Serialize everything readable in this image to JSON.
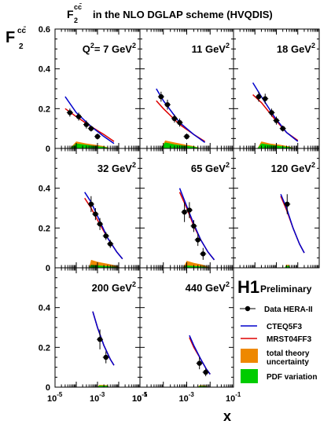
{
  "chart_data": {
    "type": "scatter",
    "title_prefix": "F",
    "title_sub": "2",
    "title_sup": "cc̄",
    "title_suffix": "in the NLO DGLAP scheme (HVQDIS)",
    "ylabel_main": "F",
    "ylabel_sub": "2",
    "ylabel_sup": "cc̄",
    "xlabel": "x",
    "x_scale": "log",
    "xlim": [
      1e-05,
      0.1
    ],
    "ylim": [
      0,
      0.6
    ],
    "y_ticks": [
      {
        "value": 0,
        "label": "0"
      },
      {
        "value": 0.2,
        "label": "0.2"
      },
      {
        "value": 0.4,
        "label": "0.4"
      },
      {
        "value": 0.6,
        "label": "0.6"
      }
    ],
    "x_ticks": [
      {
        "value": 1e-05,
        "base": "10",
        "exp": "-5"
      },
      {
        "value": 0.001,
        "base": "10",
        "exp": "-3"
      },
      {
        "value": 0.1,
        "base": "10",
        "exp": "-1"
      }
    ],
    "grid": false,
    "logo": {
      "h1": "H1",
      "status": "Preliminary"
    },
    "legend": {
      "placement": "bottom-right",
      "data": "Data HERA-II",
      "cteq": "CTEQ5F3",
      "mrst": "MRST04FF3",
      "theory": "total theory uncertainty",
      "pdf": "PDF variation"
    },
    "colors": {
      "data": "#000000",
      "cteq": "#0000cc",
      "mrst": "#dd0000",
      "theory_band": "#ee8800",
      "pdf_band": "#00cc00"
    },
    "panels": [
      {
        "q2_prefix": "Q",
        "q2_value": "7",
        "q2_unit": "GeV",
        "data": [
          {
            "x": 5e-05,
            "y": 0.18,
            "err": 0.02
          },
          {
            "x": 0.00013,
            "y": 0.16,
            "err": 0.02
          },
          {
            "x": 0.0003,
            "y": 0.12,
            "err": 0.02
          },
          {
            "x": 0.0005,
            "y": 0.1,
            "err": 0.015
          },
          {
            "x": 0.001,
            "y": 0.06,
            "err": 0.015
          }
        ],
        "cteq": [
          [
            3e-05,
            0.26
          ],
          [
            0.0001,
            0.18
          ],
          [
            0.0005,
            0.11
          ],
          [
            0.002,
            0.06
          ],
          [
            0.006,
            0.025
          ]
        ],
        "mrst": [
          [
            3e-05,
            0.2
          ],
          [
            0.0001,
            0.16
          ],
          [
            0.0005,
            0.11
          ],
          [
            0.002,
            0.07
          ],
          [
            0.006,
            0.035
          ]
        ],
        "theory_band": [
          [
            5e-05,
            0.0
          ],
          [
            0.0001,
            0.035
          ],
          [
            0.0003,
            0.025
          ],
          [
            0.0008,
            0.018
          ],
          [
            0.002,
            0.012
          ],
          [
            0.004,
            0.0
          ]
        ],
        "pdf_band": [
          [
            5e-05,
            0.0
          ],
          [
            0.0001,
            0.025
          ],
          [
            0.0003,
            0.018
          ],
          [
            0.0008,
            0.012
          ],
          [
            0.002,
            0.008
          ],
          [
            0.004,
            0.0
          ]
        ]
      },
      {
        "q2_prefix": "",
        "q2_value": "11",
        "q2_unit": "GeV",
        "data": [
          {
            "x": 8e-05,
            "y": 0.26,
            "err": 0.025
          },
          {
            "x": 0.00015,
            "y": 0.22,
            "err": 0.025
          },
          {
            "x": 0.0003,
            "y": 0.15,
            "err": 0.02
          },
          {
            "x": 0.0005,
            "y": 0.13,
            "err": 0.02
          },
          {
            "x": 0.001,
            "y": 0.06,
            "err": 0.015
          }
        ],
        "cteq": [
          [
            5e-05,
            0.3
          ],
          [
            0.0001,
            0.24
          ],
          [
            0.0005,
            0.13
          ],
          [
            0.002,
            0.07
          ],
          [
            0.006,
            0.03
          ]
        ],
        "mrst": [
          [
            5e-05,
            0.24
          ],
          [
            0.0001,
            0.2
          ],
          [
            0.0005,
            0.12
          ],
          [
            0.002,
            0.07
          ],
          [
            0.006,
            0.035
          ]
        ],
        "theory_band": [
          [
            8e-05,
            0.0
          ],
          [
            0.00012,
            0.04
          ],
          [
            0.0003,
            0.03
          ],
          [
            0.0008,
            0.02
          ],
          [
            0.002,
            0.012
          ],
          [
            0.004,
            0.0
          ]
        ],
        "pdf_band": [
          [
            8e-05,
            0.0
          ],
          [
            0.00012,
            0.03
          ],
          [
            0.0003,
            0.02
          ],
          [
            0.0008,
            0.014
          ],
          [
            0.002,
            0.009
          ],
          [
            0.004,
            0.0
          ]
        ]
      },
      {
        "q2_prefix": "",
        "q2_value": "18",
        "q2_unit": "GeV",
        "data": [
          {
            "x": 0.00015,
            "y": 0.26,
            "err": 0.025
          },
          {
            "x": 0.0003,
            "y": 0.25,
            "err": 0.025
          },
          {
            "x": 0.0006,
            "y": 0.18,
            "err": 0.02
          },
          {
            "x": 0.001,
            "y": 0.14,
            "err": 0.02
          },
          {
            "x": 0.002,
            "y": 0.1,
            "err": 0.015
          }
        ],
        "cteq": [
          [
            8e-05,
            0.33
          ],
          [
            0.0002,
            0.26
          ],
          [
            0.0008,
            0.16
          ],
          [
            0.003,
            0.08
          ],
          [
            0.01,
            0.035
          ]
        ],
        "mrst": [
          [
            8e-05,
            0.27
          ],
          [
            0.0002,
            0.23
          ],
          [
            0.0008,
            0.15
          ],
          [
            0.003,
            0.08
          ],
          [
            0.01,
            0.04
          ]
        ],
        "theory_band": [
          [
            0.00013,
            0.0
          ],
          [
            0.0002,
            0.035
          ],
          [
            0.0005,
            0.025
          ],
          [
            0.0015,
            0.018
          ],
          [
            0.004,
            0.01
          ],
          [
            0.007,
            0.0
          ]
        ],
        "pdf_band": [
          [
            0.00013,
            0.0
          ],
          [
            0.0002,
            0.025
          ],
          [
            0.0005,
            0.018
          ],
          [
            0.0015,
            0.012
          ],
          [
            0.004,
            0.007
          ],
          [
            0.007,
            0.0
          ]
        ]
      },
      {
        "q2_prefix": "",
        "q2_value": "32",
        "q2_unit": "GeV",
        "data": [
          {
            "x": 0.0005,
            "y": 0.32,
            "err": 0.04
          },
          {
            "x": 0.0008,
            "y": 0.27,
            "err": 0.03
          },
          {
            "x": 0.0013,
            "y": 0.22,
            "err": 0.03
          },
          {
            "x": 0.0025,
            "y": 0.16,
            "err": 0.02
          },
          {
            "x": 0.004,
            "y": 0.12,
            "err": 0.02
          }
        ],
        "cteq": [
          [
            0.00025,
            0.38
          ],
          [
            0.0005,
            0.33
          ],
          [
            0.001,
            0.26
          ],
          [
            0.003,
            0.15
          ],
          [
            0.008,
            0.08
          ],
          [
            0.015,
            0.045
          ]
        ],
        "mrst": [
          [
            0.00025,
            0.35
          ],
          [
            0.0005,
            0.3
          ],
          [
            0.001,
            0.24
          ],
          [
            0.003,
            0.15
          ],
          [
            0.008,
            0.08
          ],
          [
            0.015,
            0.045
          ]
        ],
        "theory_band": [
          [
            0.0004,
            0.0
          ],
          [
            0.0005,
            0.04
          ],
          [
            0.001,
            0.03
          ],
          [
            0.003,
            0.02
          ],
          [
            0.007,
            0.012
          ],
          [
            0.012,
            0.0
          ]
        ],
        "pdf_band": [
          [
            0.0004,
            0.0
          ],
          [
            0.0005,
            0.015
          ],
          [
            0.001,
            0.012
          ],
          [
            0.003,
            0.008
          ],
          [
            0.007,
            0.005
          ],
          [
            0.012,
            0.0
          ]
        ]
      },
      {
        "q2_prefix": "",
        "q2_value": "65",
        "q2_unit": "GeV",
        "data": [
          {
            "x": 0.0008,
            "y": 0.28,
            "err": 0.05
          },
          {
            "x": 0.0013,
            "y": 0.29,
            "err": 0.04
          },
          {
            "x": 0.002,
            "y": 0.21,
            "err": 0.03
          },
          {
            "x": 0.003,
            "y": 0.14,
            "err": 0.03
          },
          {
            "x": 0.005,
            "y": 0.07,
            "err": 0.03
          }
        ],
        "cteq": [
          [
            0.0005,
            0.4
          ],
          [
            0.001,
            0.31
          ],
          [
            0.002,
            0.22
          ],
          [
            0.004,
            0.14
          ],
          [
            0.008,
            0.08
          ],
          [
            0.015,
            0.04
          ]
        ],
        "mrst": [
          [
            0.0005,
            0.38
          ],
          [
            0.001,
            0.3
          ],
          [
            0.002,
            0.21
          ],
          [
            0.004,
            0.14
          ],
          [
            0.008,
            0.08
          ],
          [
            0.015,
            0.04
          ]
        ],
        "theory_band": [
          [
            0.0007,
            0.0
          ],
          [
            0.001,
            0.035
          ],
          [
            0.002,
            0.025
          ],
          [
            0.005,
            0.015
          ],
          [
            0.01,
            0.0
          ]
        ],
        "pdf_band": [
          [
            0.0007,
            0.0
          ],
          [
            0.001,
            0.012
          ],
          [
            0.002,
            0.009
          ],
          [
            0.005,
            0.006
          ],
          [
            0.01,
            0.0
          ]
        ]
      },
      {
        "q2_prefix": "",
        "q2_value": "120",
        "q2_unit": "GeV",
        "data": [
          {
            "x": 0.0032,
            "y": 0.32,
            "err": 0.05
          }
        ],
        "cteq": [
          [
            0.0016,
            0.37
          ],
          [
            0.003,
            0.3
          ],
          [
            0.006,
            0.2
          ],
          [
            0.012,
            0.12
          ],
          [
            0.02,
            0.075
          ]
        ],
        "mrst": [
          [
            0.0016,
            0.36
          ],
          [
            0.003,
            0.29
          ],
          [
            0.006,
            0.2
          ],
          [
            0.012,
            0.12
          ],
          [
            0.02,
            0.075
          ]
        ],
        "theory_band": [
          [
            0.0025,
            0.0
          ],
          [
            0.0028,
            0.015
          ],
          [
            0.004,
            0.015
          ],
          [
            0.0045,
            0.0
          ]
        ],
        "pdf_band": [
          [
            0.0025,
            0.0
          ],
          [
            0.0028,
            0.01
          ],
          [
            0.004,
            0.01
          ],
          [
            0.0045,
            0.0
          ]
        ]
      },
      {
        "q2_prefix": "",
        "q2_value": "200",
        "q2_unit": "GeV",
        "data": [
          {
            "x": 0.0013,
            "y": 0.24,
            "err": 0.05
          },
          {
            "x": 0.0025,
            "y": 0.15,
            "err": 0.03
          }
        ],
        "cteq": [
          [
            0.0006,
            0.38
          ],
          [
            0.001,
            0.3
          ],
          [
            0.002,
            0.21
          ],
          [
            0.004,
            0.14
          ],
          [
            0.006,
            0.11
          ]
        ],
        "mrst": [
          [
            0.0006,
            0.38
          ],
          [
            0.001,
            0.3
          ],
          [
            0.002,
            0.21
          ],
          [
            0.004,
            0.14
          ],
          [
            0.006,
            0.11
          ]
        ],
        "theory_band": [
          [
            0.001,
            0.0
          ],
          [
            0.0012,
            0.012
          ],
          [
            0.003,
            0.01
          ],
          [
            0.0035,
            0.0
          ]
        ],
        "pdf_band": [
          [
            0.001,
            0.0
          ],
          [
            0.0012,
            0.008
          ],
          [
            0.003,
            0.007
          ],
          [
            0.0035,
            0.0
          ]
        ]
      },
      {
        "q2_prefix": "",
        "q2_value": "440",
        "q2_unit": "GeV",
        "data": [
          {
            "x": 0.0035,
            "y": 0.12,
            "err": 0.03
          },
          {
            "x": 0.0065,
            "y": 0.075,
            "err": 0.02
          }
        ],
        "cteq": [
          [
            0.0013,
            0.26
          ],
          [
            0.002,
            0.21
          ],
          [
            0.004,
            0.14
          ],
          [
            0.007,
            0.09
          ],
          [
            0.01,
            0.065
          ]
        ],
        "mrst": [
          [
            0.0013,
            0.25
          ],
          [
            0.002,
            0.2
          ],
          [
            0.004,
            0.14
          ],
          [
            0.007,
            0.09
          ],
          [
            0.01,
            0.065
          ]
        ],
        "theory_band": [
          [
            0.003,
            0.0
          ],
          [
            0.0035,
            0.01
          ],
          [
            0.007,
            0.008
          ],
          [
            0.008,
            0.0
          ]
        ],
        "pdf_band": [
          [
            0.003,
            0.0
          ],
          [
            0.0035,
            0.006
          ],
          [
            0.007,
            0.005
          ],
          [
            0.008,
            0.0
          ]
        ]
      }
    ]
  }
}
